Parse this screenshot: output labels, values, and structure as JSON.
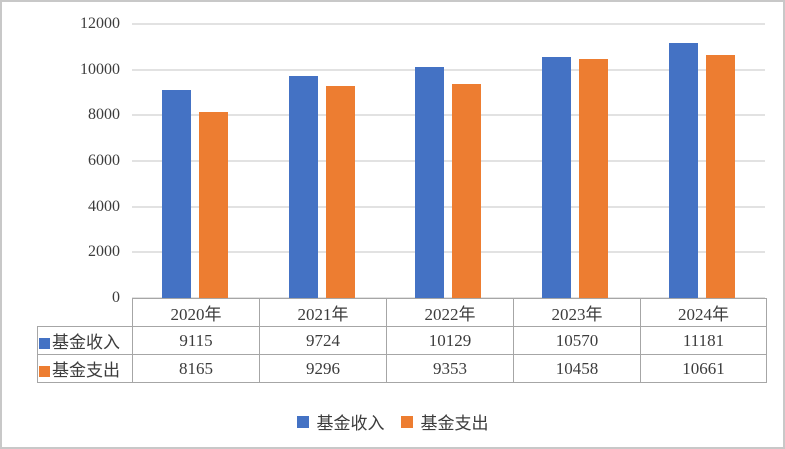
{
  "chart_data": {
    "type": "bar",
    "title": "",
    "xlabel": "",
    "ylabel": "",
    "categories": [
      "2020年",
      "2021年",
      "2022年",
      "2023年",
      "2024年"
    ],
    "series": [
      {
        "name": "基金收入",
        "color": "#4472C4",
        "values": [
          9115,
          9724,
          10129,
          10570,
          11181
        ]
      },
      {
        "name": "基金支出",
        "color": "#ED7D31",
        "values": [
          8165,
          9296,
          9353,
          10458,
          10661
        ]
      }
    ],
    "ylim": [
      0,
      12000
    ],
    "yticks": [
      0,
      2000,
      4000,
      6000,
      8000,
      10000,
      12000
    ],
    "grid": true,
    "legend_position": "bottom",
    "has_data_table": true
  },
  "colors": {
    "income": "#4472C4",
    "expense": "#ED7D31",
    "gridline": "#E2E2E2",
    "table_border": "#A6A6A6",
    "text": "#3C3C3C",
    "page_border": "#C8C8C8"
  }
}
